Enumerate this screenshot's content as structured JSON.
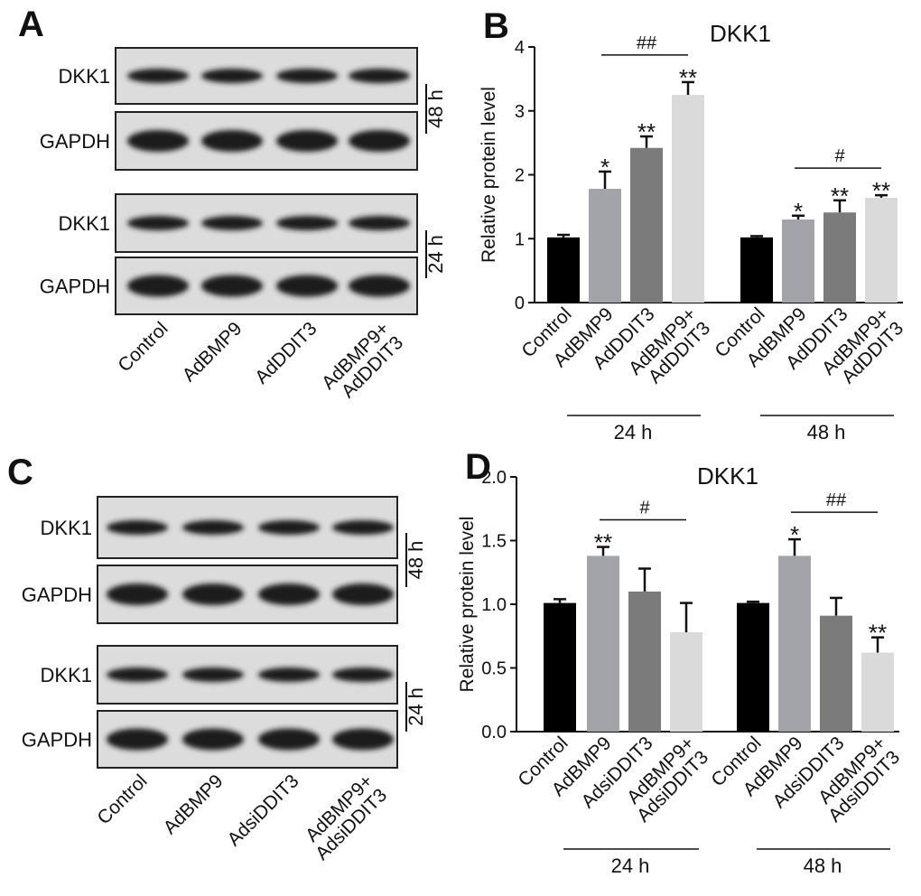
{
  "blots": [
    {
      "letter": "A",
      "rows": [
        "DKK1",
        "GAPDH",
        "DKK1",
        "GAPDH"
      ],
      "times": [
        "48 h",
        "24 h"
      ],
      "lanes": [
        "Control",
        "AdBMP9",
        "AdDDIT3",
        "AdBMP9+\nAdDDIT3"
      ]
    },
    {
      "letter": "C",
      "rows": [
        "DKK1",
        "GAPDH",
        "DKK1",
        "GAPDH"
      ],
      "times": [
        "48 h",
        "24 h"
      ],
      "lanes": [
        "Control",
        "AdBMP9",
        "AdsiDDIT3",
        "AdBMP9+\nAdsiDDIT3"
      ]
    }
  ],
  "chart_data": [
    {
      "type": "bar",
      "letter": "B",
      "title": "DKK1",
      "y_label": "Relative protein level",
      "categories": [
        "Control",
        "AdBMP9",
        "AdDDIT3",
        "AdBMP9+\nAdDDIT3"
      ],
      "colors": [
        "#000000",
        "#a3a3aa",
        "#7b7b7b",
        "#dadada"
      ],
      "ylim": [
        0,
        4
      ],
      "yticks": [
        0,
        1,
        2,
        3,
        4
      ],
      "series": [
        {
          "name": "24 h",
          "values": [
            1.02,
            1.78,
            2.42,
            3.25
          ],
          "errors": [
            0.04,
            0.27,
            0.18,
            0.2
          ],
          "stars": [
            null,
            "*",
            "**",
            "**"
          ],
          "comparison": "##"
        },
        {
          "name": "48 h",
          "values": [
            1.02,
            1.3,
            1.41,
            1.64
          ],
          "errors": [
            0.02,
            0.06,
            0.19,
            0.04
          ],
          "stars": [
            null,
            "*",
            "**",
            "**"
          ],
          "comparison": "#"
        }
      ]
    },
    {
      "type": "bar",
      "letter": "D",
      "title": "DKK1",
      "y_label": "Relative protein level",
      "categories": [
        "Control",
        "AdBMP9",
        "AdsiDDIT3",
        "AdBMP9+\nAdsiDDIT3"
      ],
      "colors": [
        "#000000",
        "#a3a3aa",
        "#7b7b7b",
        "#dadada"
      ],
      "ylim": [
        0,
        2
      ],
      "yticks": [
        {
          "value": 0,
          "label": "0.0"
        },
        {
          "value": 0.5,
          "label": "0.5"
        },
        {
          "value": 1,
          "label": "1.0"
        },
        {
          "value": 1.5,
          "label": "1.5"
        },
        {
          "value": 2,
          "label": "2.0"
        }
      ],
      "series": [
        {
          "name": "24 h",
          "values": [
            1.01,
            1.38,
            1.1,
            0.78
          ],
          "errors": [
            0.03,
            0.07,
            0.18,
            0.23
          ],
          "stars": [
            null,
            "**",
            null,
            null
          ],
          "comparison": "#"
        },
        {
          "name": "48 h",
          "values": [
            1.01,
            1.38,
            0.91,
            0.62
          ],
          "errors": [
            0.01,
            0.13,
            0.14,
            0.12
          ],
          "stars": [
            null,
            "*",
            null,
            "**"
          ],
          "comparison": "##"
        }
      ]
    }
  ]
}
